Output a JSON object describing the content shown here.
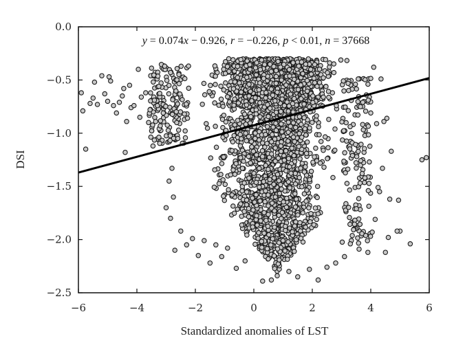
{
  "chart_data": {
    "type": "scatter",
    "title": "",
    "xlabel": "Standardized anomalies of LST",
    "ylabel": "DSI",
    "xlim": [
      -6,
      6
    ],
    "ylim": [
      -2.5,
      0.0
    ],
    "x_ticks": [
      -6,
      -4,
      -2,
      0,
      2,
      4,
      6
    ],
    "y_ticks": [
      0.0,
      -0.5,
      -1.0,
      -1.5,
      -2.0,
      -2.5
    ],
    "x_tick_labels": [
      "−6",
      "−4",
      "−2",
      "0",
      "2",
      "4",
      "6"
    ],
    "y_tick_labels": [
      "0.0",
      "−0.5",
      "−1.0",
      "−1.5",
      "−2.0",
      "−2.5"
    ],
    "grid": false,
    "regression": {
      "slope": 0.074,
      "intercept": -0.926
    },
    "annotation": "y = 0.074x − 0.926, r = −0.226, p < 0.01, n = 37668",
    "annotation_parts": {
      "y": "y",
      "eq1": " = 0.074",
      "x": "x",
      "eq2": " − 0.926, ",
      "r": "r",
      "eq3": " = −0.226, ",
      "p": "p",
      "eq4": " < 0.01, ",
      "n": "n",
      "eq5": " = 37668"
    },
    "n": 37668,
    "marker": {
      "fill": "#c8c8c8",
      "edge": "#1a1a1a"
    },
    "line_color": "#000000",
    "points": [
      [
        -5.9,
        -0.62
      ],
      [
        -5.85,
        -0.79
      ],
      [
        -5.75,
        -1.15
      ],
      [
        -5.6,
        -0.72
      ],
      [
        -5.5,
        -0.67
      ],
      [
        -5.45,
        -0.52
      ],
      [
        -5.35,
        -0.73
      ],
      [
        -5.2,
        -0.46
      ],
      [
        -5.1,
        -0.63
      ],
      [
        -5.0,
        -0.7
      ],
      [
        -4.95,
        -0.47
      ],
      [
        -4.9,
        -0.51
      ],
      [
        -4.8,
        -0.74
      ],
      [
        -4.7,
        -0.81
      ],
      [
        -4.6,
        -0.71
      ],
      [
        -4.5,
        -0.65
      ],
      [
        -4.45,
        -0.58
      ],
      [
        -4.4,
        -1.18
      ],
      [
        -4.35,
        -0.89
      ],
      [
        -4.25,
        -0.55
      ],
      [
        -4.2,
        -0.76
      ],
      [
        -4.1,
        -0.74
      ],
      [
        -3.95,
        -0.4
      ],
      [
        -3.9,
        -0.85
      ],
      [
        -3.85,
        -0.66
      ],
      [
        -3.7,
        -0.62
      ],
      [
        -3.6,
        -0.9
      ],
      [
        -3.55,
        -0.78
      ],
      [
        -3.45,
        -1.12
      ],
      [
        -3.4,
        -0.69
      ],
      [
        -3.3,
        -0.74
      ],
      [
        -3.25,
        -0.56
      ],
      [
        -3.2,
        -0.93
      ],
      [
        -3.1,
        -0.81
      ],
      [
        -3.05,
        -0.37
      ],
      [
        5.9,
        -1.23
      ],
      [
        5.75,
        -1.25
      ],
      [
        5.35,
        -2.04
      ],
      [
        5.0,
        -1.92
      ],
      [
        4.9,
        -1.92
      ],
      [
        4.95,
        -1.63
      ],
      [
        4.7,
        -1.17
      ],
      [
        4.65,
        -1.62
      ],
      [
        4.6,
        -1.98
      ],
      [
        4.55,
        -0.86
      ],
      [
        4.5,
        -2.12
      ],
      [
        4.45,
        -0.89
      ],
      [
        4.4,
        -1.33
      ],
      [
        4.35,
        -0.49
      ],
      [
        4.3,
        -1.55
      ],
      [
        4.25,
        -1.51
      ],
      [
        4.2,
        -0.91
      ],
      [
        4.15,
        -1.81
      ],
      [
        4.1,
        -0.38
      ],
      [
        4.05,
        -1.93
      ],
      [
        4.0,
        -0.81
      ],
      [
        3.95,
        -1.27
      ],
      [
        3.9,
        -2.12
      ],
      [
        3.85,
        -0.64
      ],
      [
        3.8,
        -1.42
      ],
      [
        -2.7,
        -2.1
      ],
      [
        -2.5,
        -1.92
      ],
      [
        -2.3,
        -2.05
      ],
      [
        -2.1,
        -1.99
      ],
      [
        -1.9,
        -2.15
      ],
      [
        -1.7,
        -2.01
      ],
      [
        -1.5,
        -2.22
      ],
      [
        -1.3,
        -2.05
      ],
      [
        -1.1,
        -2.16
      ],
      [
        -0.9,
        -2.08
      ],
      [
        -0.6,
        -2.27
      ],
      [
        -0.3,
        -2.2
      ],
      [
        0.3,
        -2.39
      ],
      [
        0.6,
        -2.38
      ],
      [
        0.8,
        -2.34
      ],
      [
        1.2,
        -2.3
      ],
      [
        1.5,
        -2.35
      ],
      [
        1.9,
        -2.28
      ],
      [
        2.2,
        -2.38
      ],
      [
        2.5,
        -2.26
      ],
      [
        2.8,
        -2.22
      ],
      [
        3.1,
        -2.16
      ],
      [
        3.3,
        -2.04
      ],
      [
        3.6,
        -2.09
      ],
      [
        -3.0,
        -1.7
      ],
      [
        -2.9,
        -1.45
      ],
      [
        -2.8,
        -1.33
      ],
      [
        -2.85,
        -1.8
      ],
      [
        -2.75,
        -1.6
      ],
      [
        -2.6,
        -1.05
      ]
    ]
  }
}
